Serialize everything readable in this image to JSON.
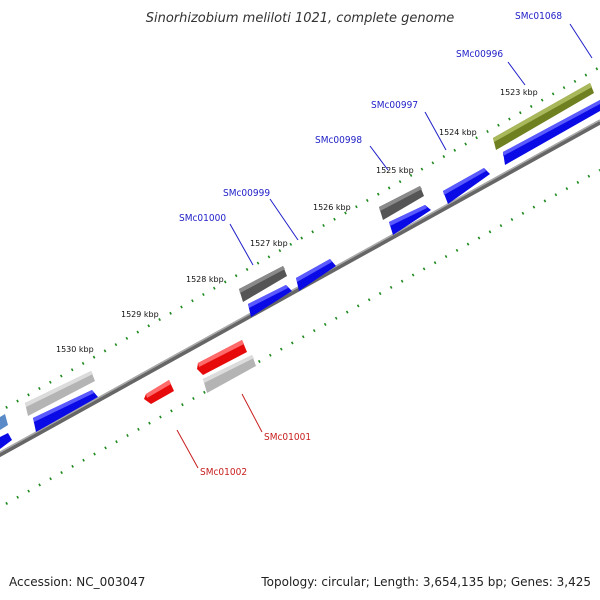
{
  "title": "Sinorhizobium meliloti 1021, complete genome",
  "footer": {
    "accession": "Accession: NC_003047",
    "summary": "Topology: circular; Length: 3,654,135 bp; Genes: 3,425"
  },
  "ruler": [
    "1523 kbp",
    "1524 kbp",
    "1525 kbp",
    "1526 kbp",
    "1527 kbp",
    "1528 kbp",
    "1529 kbp",
    "1530 kbp"
  ],
  "genes": {
    "smc01068": "SMc01068",
    "smc00996": "SMc00996",
    "smc00997": "SMc00997",
    "smc00998": "SMc00998",
    "smc00999": "SMc00999",
    "smc01000": "SMc01000",
    "smc01001": "SMc01001",
    "smc01002": "SMc01002"
  },
  "colors": {
    "cds_forward": "#0a0ae6",
    "cds_reverse": "#e60a0a",
    "label_forward": "#1e1ec8",
    "label_reverse": "#c81e1e",
    "tick": "#1e8a1e",
    "backbone": "#8c8c8c",
    "gene_dark": "#555555",
    "gene_light": "#b4b4b4",
    "gene_olive": "#7a8c2a",
    "gene_steel": "#5a8ac8"
  }
}
